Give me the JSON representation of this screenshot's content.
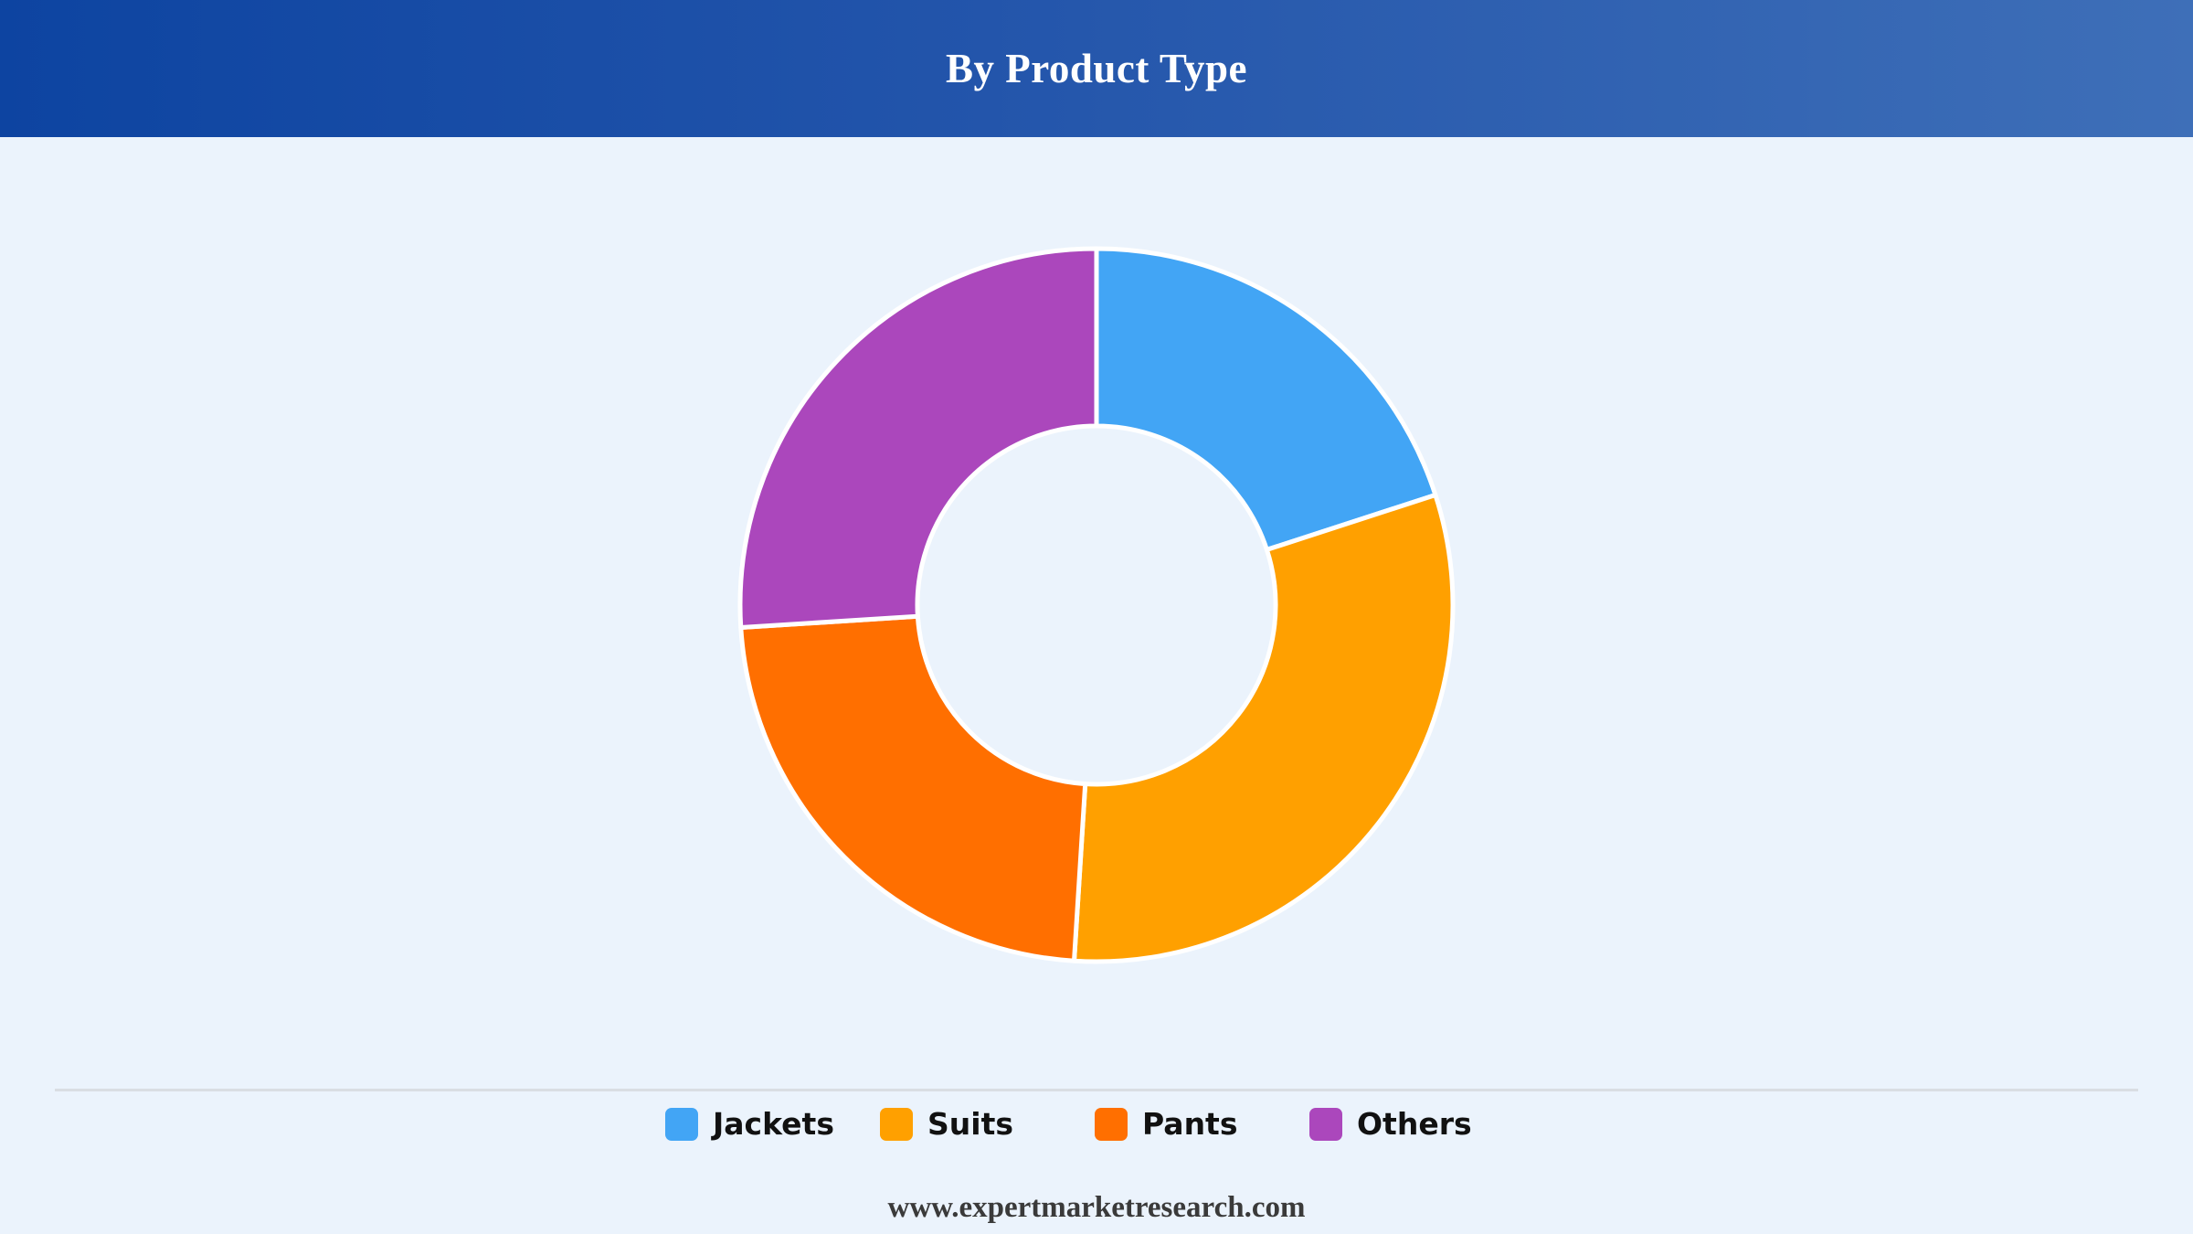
{
  "header": {
    "title": "By Product Type"
  },
  "chart_data": {
    "type": "pie",
    "donut": true,
    "title": "By Product Type",
    "categories": [
      "Jackets",
      "Suits",
      "Pants",
      "Others"
    ],
    "values": [
      20,
      31,
      23,
      26
    ],
    "colors": [
      "#42a5f5",
      "#ffa000",
      "#ff6f00",
      "#ab47bc"
    ],
    "legend_position": "bottom"
  },
  "footer": {
    "source": "www.expertmarketresearch.com"
  }
}
